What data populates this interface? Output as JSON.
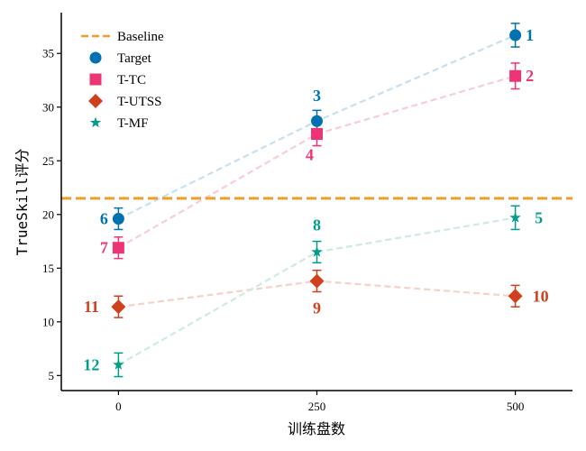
{
  "chart_data": {
    "type": "line",
    "xlabel": "训练盘数",
    "ylabel": "TrueSkill评分",
    "x": [
      0,
      250,
      500
    ],
    "xticks": [
      0,
      250,
      500
    ],
    "xlim": [
      -72,
      572
    ],
    "yticks": [
      5,
      10,
      15,
      20,
      25,
      30,
      35
    ],
    "ylim": [
      3.6,
      38.8
    ],
    "grid": false,
    "legend_position": "top-left",
    "baseline": {
      "name": "Baseline",
      "value": 21.5,
      "color": "#f39c2a"
    },
    "series": [
      {
        "name": "Target",
        "marker": "circle",
        "color": "#0072b2",
        "line_color": "#c7e0f1",
        "values": [
          19.6,
          28.7,
          36.7
        ],
        "errors": [
          1.0,
          1.0,
          1.1
        ],
        "ranks": [
          "6",
          "3",
          "1"
        ]
      },
      {
        "name": "T-TC",
        "marker": "square",
        "color": "#ec3477",
        "line_color": "#f8cdd9",
        "values": [
          16.9,
          27.5,
          32.9
        ],
        "errors": [
          1.0,
          1.1,
          1.2
        ],
        "ranks": [
          "7",
          "4",
          "2"
        ]
      },
      {
        "name": "T-UTSS",
        "marker": "diamond",
        "color": "#d0401c",
        "line_color": "#f5d2c7",
        "values": [
          11.4,
          13.8,
          12.4
        ],
        "errors": [
          1.0,
          1.0,
          1.0
        ],
        "ranks": [
          "11",
          "9",
          "10"
        ]
      },
      {
        "name": "T-MF",
        "marker": "star",
        "color": "#009e8a",
        "line_color": "#cdeae3",
        "values": [
          6.0,
          16.5,
          19.7
        ],
        "errors": [
          1.1,
          1.0,
          1.1
        ],
        "ranks": [
          "12",
          "8",
          "5"
        ]
      }
    ]
  }
}
